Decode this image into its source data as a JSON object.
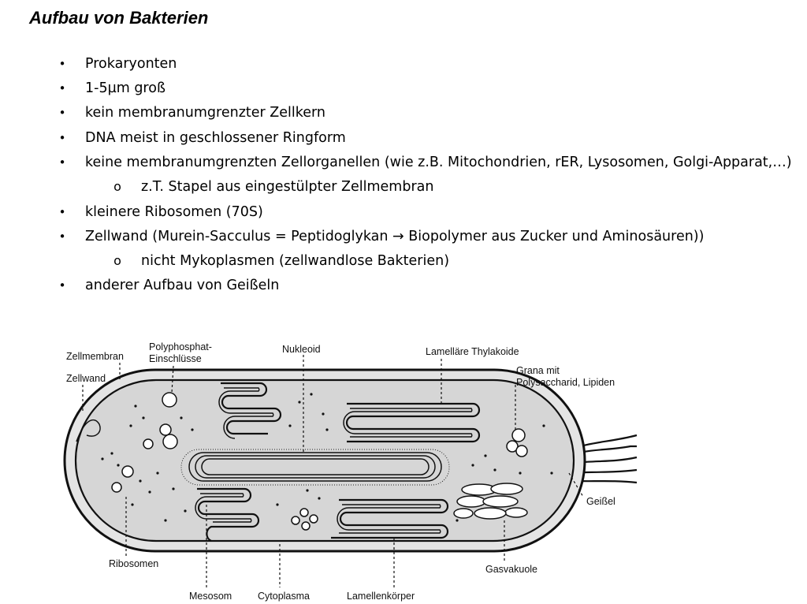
{
  "title": "Aufbau von Bakterien",
  "bullets": [
    {
      "level": 1,
      "text": "Prokaryonten"
    },
    {
      "level": 1,
      "text": "1-5µm groß"
    },
    {
      "level": 1,
      "text": "kein membranumgrenzter Zellkern"
    },
    {
      "level": 1,
      "text": "DNA meist in geschlossener Ringform"
    },
    {
      "level": 1,
      "text": "keine membranumgrenzten Zellorganellen (wie z.B. Mitochondrien, rER, Lysosomen, Golgi-Apparat,…)"
    },
    {
      "level": 2,
      "text": "z.T. Stapel aus eingestülpter Zellmembran"
    },
    {
      "level": 1,
      "text": "kleinere Ribosomen (70S)"
    },
    {
      "level": 1,
      "text": "Zellwand (Murein-Sacculus = Peptidoglykan → Biopolymer aus Zucker und Aminosäuren))"
    },
    {
      "level": 2,
      "text": "nicht Mykoplasmen (zellwandlose Bakterien)"
    },
    {
      "level": 1,
      "text": "anderer Aufbau von Geißeln"
    }
  ],
  "markers": {
    "level1": "•",
    "level2": "o"
  },
  "diagram": {
    "labels": {
      "zellmembran": "Zellmembran",
      "zellwand": "Zellwand",
      "polyphosphat_1": "Polyphosphat-",
      "polyphosphat_2": "Einschlüsse",
      "nukleoid": "Nukleoid",
      "thylakoide": "Lamelläre Thylakoide",
      "grana_1": "Grana mit",
      "grana_2": "Polysaccharid, Lipiden",
      "geissel": "Geißel",
      "ribosomen": "Ribosomen",
      "gasvakuole": "Gasvakuole",
      "mesosom": "Mesosom",
      "cytoplasma": "Cytoplasma",
      "lamellenkoerper": "Lamellenkörper"
    }
  }
}
